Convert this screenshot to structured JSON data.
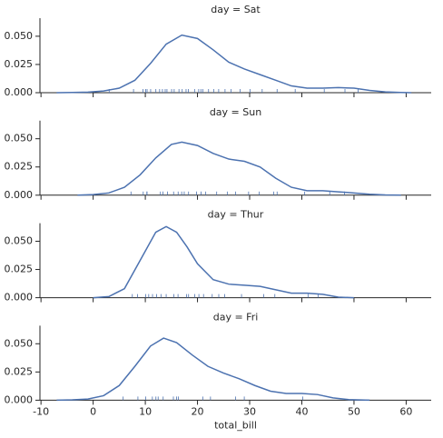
{
  "chart_data": [
    {
      "type": "line",
      "title": "day = Sat",
      "color": "#4c72b0",
      "x": [
        -7,
        -4,
        -1,
        2,
        5,
        8,
        11,
        14,
        17,
        20,
        23,
        26,
        29,
        32,
        35,
        38,
        41,
        44,
        47,
        50,
        53,
        56,
        59,
        61
      ],
      "values": [
        0,
        0.0002,
        0.0005,
        0.0015,
        0.004,
        0.011,
        0.026,
        0.043,
        0.051,
        0.048,
        0.038,
        0.027,
        0.021,
        0.016,
        0.011,
        0.006,
        0.004,
        0.004,
        0.0045,
        0.004,
        0.002,
        0.0007,
        0.0002,
        0
      ],
      "rug": [
        3.07,
        7.74,
        9.55,
        10.07,
        10.34,
        11.02,
        12.02,
        12.74,
        13.28,
        13.81,
        14.15,
        15.04,
        15.53,
        16.45,
        17.07,
        17.81,
        18.24,
        19.44,
        20.23,
        20.65,
        21.01,
        22.12,
        23.1,
        24.06,
        25.28,
        26.41,
        28.15,
        30.06,
        32.4,
        35.26,
        38.73,
        44.3,
        48.27,
        50.81
      ],
      "xlim": [
        -10.2,
        64.8
      ],
      "xticks": [
        -10,
        0,
        10,
        20,
        30,
        40,
        50,
        60
      ],
      "ylim": [
        0,
        0.066
      ],
      "yticks": [
        {
          "value": 0,
          "label": "0.000"
        },
        {
          "value": 0.025,
          "label": "0.025"
        },
        {
          "value": 0.05,
          "label": "0.050"
        }
      ]
    },
    {
      "type": "line",
      "title": "day = Sun",
      "color": "#4c72b0",
      "x": [
        -3,
        0,
        3,
        6,
        9,
        12,
        15,
        17,
        20,
        23,
        26,
        29,
        32,
        35,
        38,
        41,
        44,
        47,
        50,
        53,
        56,
        59
      ],
      "values": [
        0,
        0.0005,
        0.002,
        0.007,
        0.018,
        0.033,
        0.045,
        0.047,
        0.044,
        0.037,
        0.032,
        0.03,
        0.025,
        0.015,
        0.007,
        0.004,
        0.004,
        0.003,
        0.002,
        0.0008,
        0.0002,
        0
      ],
      "rug": [
        7.25,
        9.6,
        10.29,
        10.33,
        12.9,
        13.39,
        14.26,
        15.42,
        16.29,
        16.97,
        17.46,
        18.29,
        19.82,
        20.69,
        21.58,
        23.68,
        25.71,
        27.28,
        29.8,
        31.85,
        34.63,
        35.26,
        40.55,
        45.35,
        48.17
      ],
      "xlim": [
        -10.2,
        64.8
      ],
      "xticks": [
        -10,
        0,
        10,
        20,
        30,
        40,
        50,
        60
      ],
      "ylim": [
        0,
        0.066
      ],
      "yticks": [
        {
          "value": 0,
          "label": "0.000"
        },
        {
          "value": 0.025,
          "label": "0.025"
        },
        {
          "value": 0.05,
          "label": "0.050"
        }
      ]
    },
    {
      "type": "line",
      "title": "day = Thur",
      "color": "#4c72b0",
      "x": [
        0,
        3,
        6,
        9,
        12,
        14,
        16,
        18,
        20,
        23,
        26,
        29,
        32,
        35,
        38,
        41,
        44,
        47,
        50
      ],
      "values": [
        0,
        0.001,
        0.008,
        0.033,
        0.058,
        0.063,
        0.058,
        0.045,
        0.03,
        0.016,
        0.012,
        0.011,
        0.01,
        0.007,
        0.004,
        0.004,
        0.003,
        0.0005,
        0
      ],
      "rug": [
        7.51,
        8.52,
        10.07,
        10.65,
        11.38,
        12.16,
        13.0,
        14.0,
        15.48,
        16.27,
        17.92,
        18.29,
        19.49,
        20.27,
        21.16,
        22.82,
        24.08,
        25.21,
        28.44,
        32.68,
        34.83,
        41.19,
        43.11
      ],
      "xlim": [
        -10.2,
        64.8
      ],
      "xticks": [
        -10,
        0,
        10,
        20,
        30,
        40,
        50,
        60
      ],
      "ylim": [
        0,
        0.066
      ],
      "yticks": [
        {
          "value": 0,
          "label": "0.000"
        },
        {
          "value": 0.025,
          "label": "0.025"
        },
        {
          "value": 0.05,
          "label": "0.050"
        }
      ]
    },
    {
      "type": "line",
      "title": "day = Fri",
      "color": "#4c72b0",
      "xlabel": "total_bill",
      "x": [
        -7,
        -4,
        -1,
        2,
        5,
        8,
        11,
        13.5,
        16,
        19,
        22,
        25,
        28,
        31,
        34,
        37,
        40,
        43,
        46,
        49,
        53
      ],
      "values": [
        0,
        0.0003,
        0.001,
        0.004,
        0.013,
        0.03,
        0.048,
        0.055,
        0.051,
        0.04,
        0.03,
        0.024,
        0.019,
        0.013,
        0.008,
        0.006,
        0.006,
        0.005,
        0.002,
        0.0005,
        0
      ],
      "rug": [
        5.75,
        8.58,
        10.09,
        11.35,
        12.03,
        12.46,
        13.42,
        15.38,
        15.98,
        16.32,
        21.01,
        22.49,
        27.28,
        28.97,
        40.17
      ],
      "xlim": [
        -10.2,
        64.8
      ],
      "xticks": [
        -10,
        0,
        10,
        20,
        30,
        40,
        50,
        60
      ],
      "ylim": [
        0,
        0.066
      ],
      "yticks": [
        {
          "value": 0,
          "label": "0.000"
        },
        {
          "value": 0.025,
          "label": "0.025"
        },
        {
          "value": 0.05,
          "label": "0.050"
        }
      ]
    }
  ]
}
